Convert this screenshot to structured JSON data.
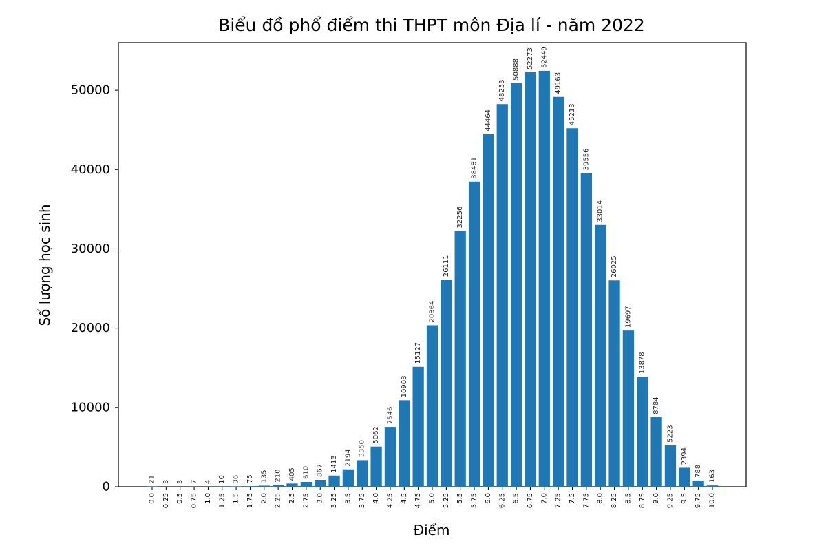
{
  "chart_data": {
    "type": "bar",
    "title": "Biểu đồ phổ điểm thi THPT môn Địa lí - năm 2022",
    "xlabel": "Điểm",
    "ylabel": "Số lượng học sinh",
    "categories": [
      "0.0",
      "0.25",
      "0.5",
      "0.75",
      "1.0",
      "1.25",
      "1.5",
      "1.75",
      "2.0",
      "2.25",
      "2.5",
      "2.75",
      "3.0",
      "3.25",
      "3.5",
      "3.75",
      "4.0",
      "4.25",
      "4.5",
      "4.75",
      "5.0",
      "5.25",
      "5.5",
      "5.75",
      "6.0",
      "6.25",
      "6.5",
      "6.75",
      "7.0",
      "7.25",
      "7.5",
      "7.75",
      "8.0",
      "8.25",
      "8.5",
      "8.75",
      "9.0",
      "9.25",
      "9.5",
      "9.75",
      "10.0"
    ],
    "values": [
      21,
      3,
      3,
      7,
      4,
      10,
      36,
      75,
      135,
      210,
      405,
      610,
      867,
      1413,
      2194,
      3350,
      5062,
      7546,
      10908,
      15127,
      20364,
      26111,
      32256,
      38481,
      44464,
      48253,
      50888,
      52273,
      52449,
      49163,
      45213,
      39556,
      33014,
      26025,
      19697,
      13878,
      8784,
      5223,
      2394,
      788,
      163
    ],
    "data_labels": [
      "21",
      "3",
      "3",
      "7",
      "4",
      "10",
      "36",
      "75",
      "135",
      "210",
      "405",
      "610",
      "867",
      "1413",
      "2194",
      "3350",
      "5062",
      "7546",
      "10908",
      "15127",
      "20364",
      "26111",
      "32256",
      "38481",
      "44464",
      "48253",
      "50888",
      "52273",
      "52449",
      "49163",
      "45213",
      "39556",
      "33014",
      "26025",
      "19697",
      "13878",
      "8784",
      "5223",
      "2394",
      "788",
      "163"
    ],
    "yticks": [
      0,
      10000,
      20000,
      30000,
      40000,
      50000
    ],
    "ytick_labels": [
      "0",
      "10000",
      "20000",
      "30000",
      "40000",
      "50000"
    ],
    "ylim": [
      0,
      56000
    ],
    "bar_color": "#1f77b4",
    "grid": false,
    "legend": "none"
  }
}
